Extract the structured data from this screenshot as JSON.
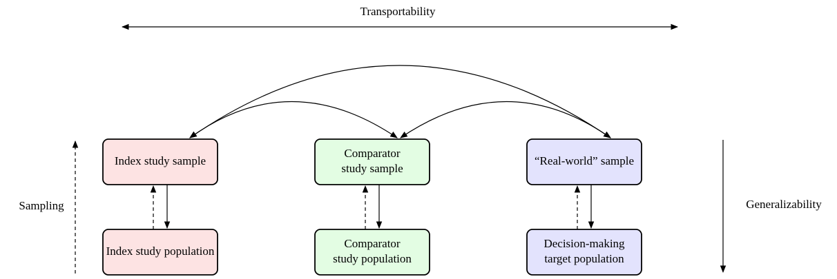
{
  "axes": {
    "top": "Transportability",
    "left": "Sampling",
    "right": "Generalizability"
  },
  "nodes": [
    {
      "lines": [
        "Index study sample"
      ]
    },
    {
      "lines": [
        "Comparator",
        "study sample"
      ]
    },
    {
      "lines": [
        "“Real-world” sample"
      ]
    },
    {
      "lines": [
        "Index study population"
      ]
    },
    {
      "lines": [
        "Comparator",
        "study population"
      ]
    },
    {
      "lines": [
        "Decision-making",
        "target population"
      ]
    }
  ]
}
